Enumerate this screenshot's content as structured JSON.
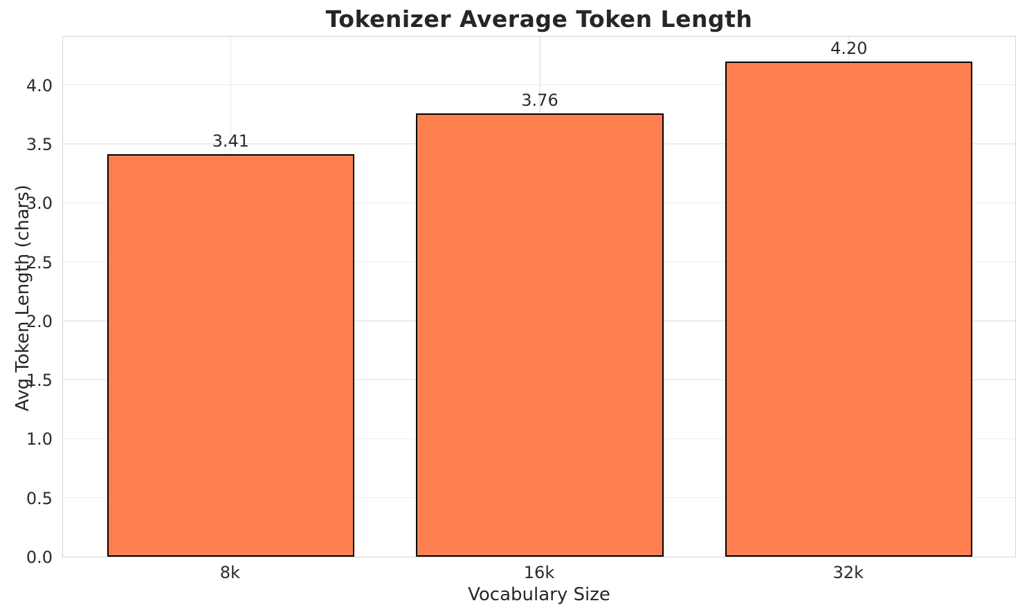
{
  "chart_data": {
    "type": "bar",
    "title": "Tokenizer Average Token Length",
    "xlabel": "Vocabulary Size",
    "ylabel": "Avg Token Length (chars)",
    "categories": [
      "8k",
      "16k",
      "32k"
    ],
    "values": [
      3.41,
      3.76,
      4.2
    ],
    "value_labels": [
      "3.41",
      "3.76",
      "4.20"
    ],
    "yticks": [
      0.0,
      0.5,
      1.0,
      1.5,
      2.0,
      2.5,
      3.0,
      3.5,
      4.0
    ],
    "ytick_labels": [
      "0.0",
      "0.5",
      "1.0",
      "1.5",
      "2.0",
      "2.5",
      "3.0",
      "3.5",
      "4.0"
    ],
    "ylim": [
      0,
      4.42
    ],
    "grid": true,
    "legend": null,
    "colors": {
      "bar_fill": "#FF7F50",
      "bar_edge": "#000000",
      "grid": "#ececec",
      "spine": "#d2d2d2",
      "text": "#262626",
      "background": "#ffffff"
    }
  }
}
